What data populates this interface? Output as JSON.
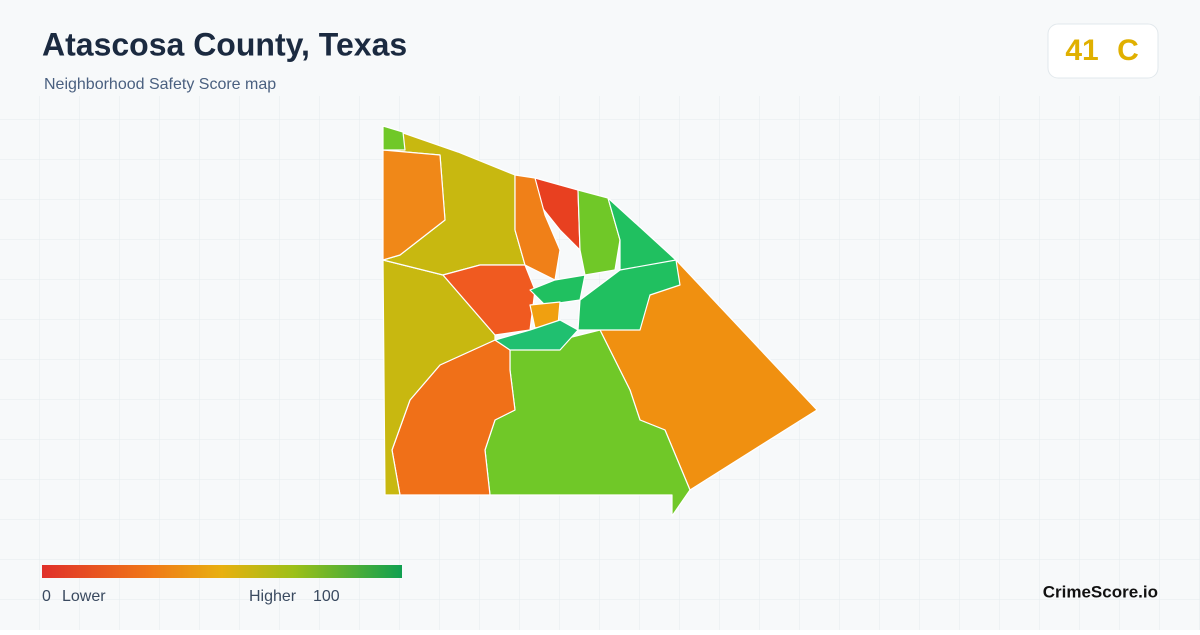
{
  "header": {
    "title": "Atascosa County, Texas",
    "subtitle": "Neighborhood Safety Score map"
  },
  "score": {
    "value": 41,
    "grade": "C"
  },
  "legend": {
    "min": 0,
    "min_label": "Lower",
    "max_label": "Higher",
    "max": 100
  },
  "brand": "CrimeScore.io"
}
